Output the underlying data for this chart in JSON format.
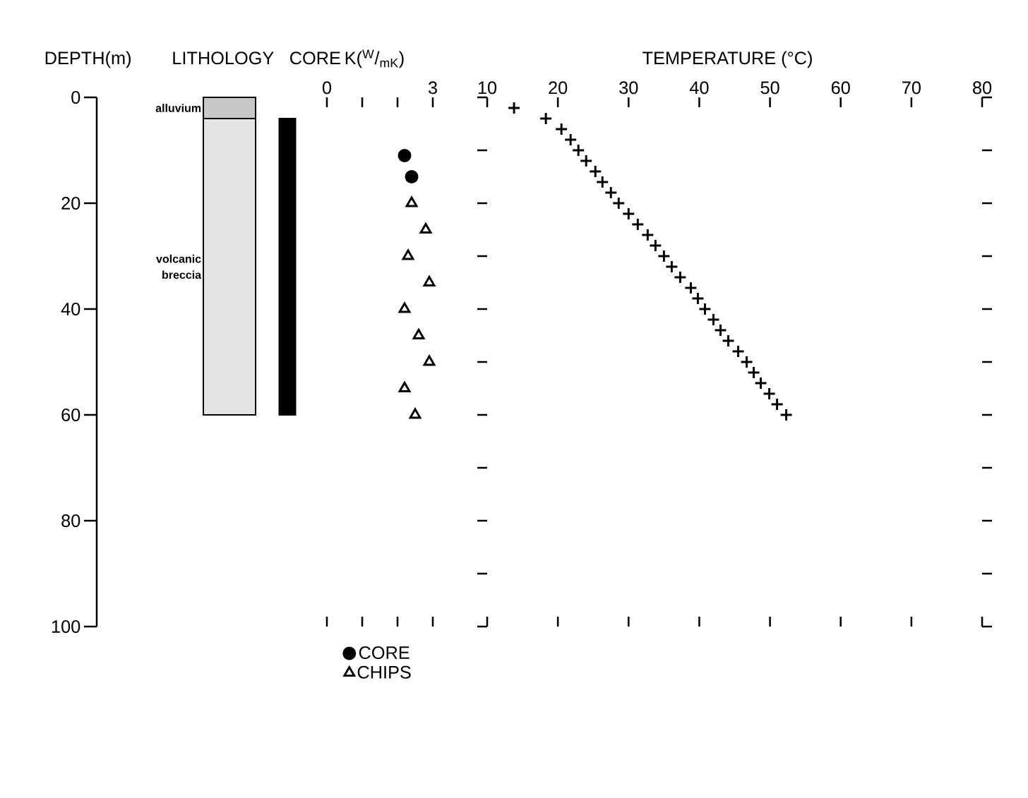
{
  "chart_data": [
    {
      "type": "bar",
      "ylabel": "DEPTH(m)",
      "categories": [
        "LITHOLOGY",
        "CORE"
      ],
      "ylim": [
        100,
        0
      ],
      "yticks": [
        0,
        20,
        40,
        60,
        80,
        100
      ],
      "tick_labels": "y",
      "series": [
        {
          "name": "alluvium",
          "color": "#c8c8c8",
          "base": [
            0,
            null
          ],
          "values": [
            4,
            null
          ]
        },
        {
          "name": "volcanic breccia",
          "color": "#e4e4e4",
          "base": [
            4,
            null
          ],
          "values": [
            56,
            null
          ]
        },
        {
          "color": "#000000",
          "base": [
            null,
            4
          ],
          "values": [
            null,
            56
          ]
        }
      ]
    },
    {
      "type": "scatter",
      "xlabel": "K($^{W}$/$_{mK}$)",
      "xlim": [
        0,
        3
      ],
      "xticks": [
        0,
        {
          "value": 1,
          "label": null
        },
        {
          "value": 2,
          "label": null
        },
        3
      ],
      "ylim": [
        100,
        0
      ],
      "tick_labels": "x",
      "legend": "bottom",
      "series": [
        {
          "name": "CORE",
          "color": "#000000",
          "marker": "circle",
          "x": [
            2.2,
            2.4
          ],
          "values": [
            11,
            15
          ]
        },
        {
          "name": "CHIPS",
          "color": "#000000",
          "marker": "triangle",
          "x": [
            2.4,
            2.8,
            2.3,
            2.9,
            2.2,
            2.6,
            2.9,
            2.2,
            2.5
          ],
          "values": [
            20,
            25,
            30,
            35,
            40,
            45,
            50,
            55,
            60
          ]
        }
      ]
    },
    {
      "type": "scatter",
      "xlabel": "TEMPERATURE (°C)",
      "xlim": [
        10,
        80
      ],
      "xticks": [
        10,
        20,
        30,
        40,
        50,
        60,
        70,
        80
      ],
      "ylim": [
        100,
        0
      ],
      "yticks": [
        {
          "value": 0,
          "label": null
        },
        {
          "value": 10,
          "label": null
        },
        {
          "value": 20,
          "label": null
        },
        {
          "value": 30,
          "label": null
        },
        {
          "value": 40,
          "label": null
        },
        {
          "value": 50,
          "label": null
        },
        {
          "value": 60,
          "label": null
        },
        {
          "value": 70,
          "label": null
        },
        {
          "value": 80,
          "label": null
        },
        {
          "value": 90,
          "label": null
        },
        {
          "value": 100,
          "label": null
        }
      ],
      "tick_labels": "x",
      "marker": "cross",
      "series": [
        {
          "color": "#000000",
          "x": [
            13.8,
            18.3,
            20.5,
            21.8,
            22.9,
            24.0,
            25.3,
            26.3,
            27.5,
            28.6,
            30.0,
            31.3,
            32.7,
            33.8,
            35.0,
            36.1,
            37.3,
            38.8,
            39.8,
            40.8,
            42.0,
            43.0,
            44.1,
            45.5,
            46.7,
            47.7,
            48.7,
            49.9,
            51.0,
            52.3
          ],
          "values": [
            2,
            4,
            6,
            8,
            10,
            12,
            14,
            16,
            18,
            20,
            22,
            24,
            26,
            28,
            30,
            32,
            34,
            36,
            38,
            40,
            42,
            44,
            46,
            48,
            50,
            52,
            54,
            56,
            58,
            60
          ]
        }
      ]
    }
  ]
}
